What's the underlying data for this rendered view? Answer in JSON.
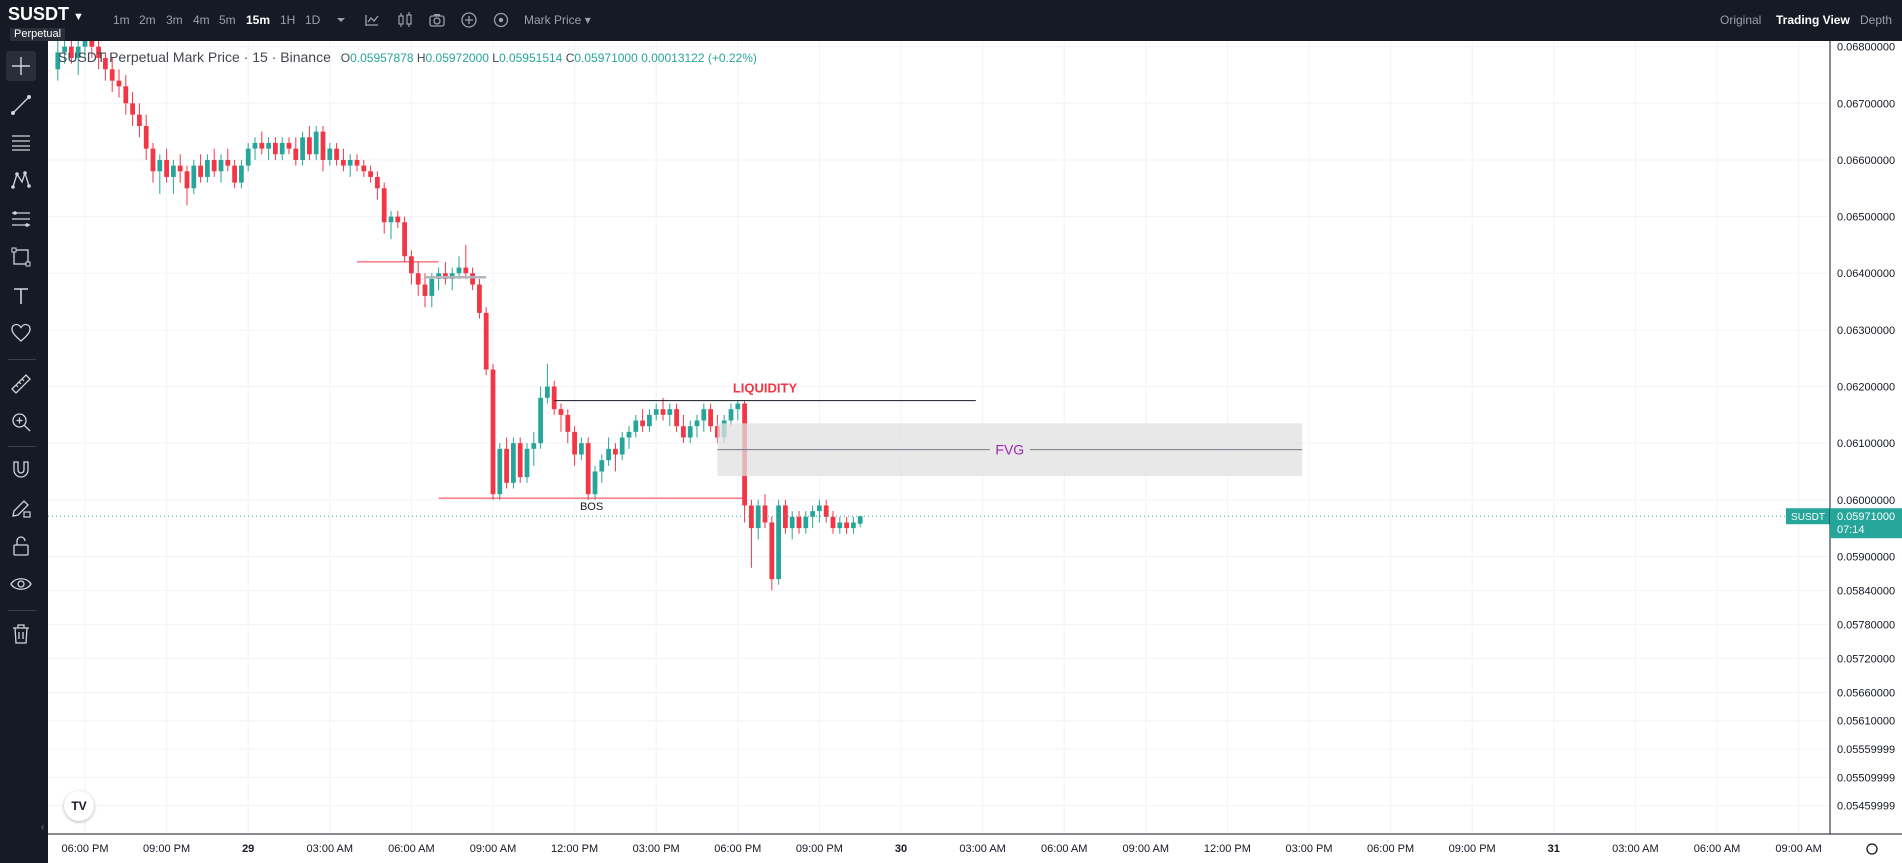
{
  "header": {
    "symbol": "SUSDT",
    "badge": "Perpetual",
    "timeframes": [
      {
        "label": "1m",
        "active": false
      },
      {
        "label": "2m",
        "active": false
      },
      {
        "label": "3m",
        "active": false
      },
      {
        "label": "4m",
        "active": false
      },
      {
        "label": "5m",
        "active": false
      },
      {
        "label": "15m",
        "active": true
      },
      {
        "label": "1H",
        "active": false
      },
      {
        "label": "1D",
        "active": false
      }
    ],
    "toolbar_icons": [
      "chevron-down-icon",
      "candle-type-icon",
      "indicators-icon",
      "screenshot-icon",
      "plus-circle-icon",
      "settings-icon"
    ],
    "price_type": "Mark Price",
    "views": [
      {
        "label": "Original",
        "active": false
      },
      {
        "label": "Trading View",
        "active": true
      },
      {
        "label": "Depth",
        "active": false
      }
    ]
  },
  "left_toolbar": [
    "crosshair-icon",
    "trend-line-icon",
    "horizontal-lines-icon",
    "pattern-icon",
    "fib-icon",
    "rectangle-icon",
    "text-icon",
    "heart-icon",
    "ruler-icon",
    "zoom-in-icon",
    "magnet-icon",
    "lock-pencil-icon",
    "unlock-icon",
    "eye-icon",
    "trash-icon"
  ],
  "legend": {
    "title": "SUSDT Perpetual Mark Price · 15 · Binance",
    "o_label": "O",
    "o": "0.05957878",
    "h_label": "H",
    "h": "0.05972000",
    "l_label": "L",
    "l": "0.05951514",
    "c_label": "C",
    "c": "0.05971000",
    "change": "0.00013122 (+0.22%)"
  },
  "chart_data": {
    "type": "candlestick",
    "yaxis": {
      "labels": [
        "0.06800000",
        "0.06700000",
        "0.06600000",
        "0.06500000",
        "0.06400000",
        "0.06300000",
        "0.06200000",
        "0.06100000",
        "0.06000000",
        "0.05900000",
        "0.05840000",
        "0.05780000",
        "0.05720000",
        "0.05660000",
        "0.05610000",
        "0.05559999",
        "0.05509999",
        "0.05459999"
      ],
      "ylim": [
        0.0541,
        0.0681
      ]
    },
    "xaxis": {
      "labels": [
        "06:00 PM",
        "09:00 PM",
        "29",
        "03:00 AM",
        "06:00 AM",
        "09:00 AM",
        "12:00 PM",
        "03:00 PM",
        "06:00 PM",
        "09:00 PM",
        "30",
        "03:00 AM",
        "06:00 AM",
        "09:00 AM",
        "12:00 PM",
        "03:00 PM",
        "06:00 PM",
        "09:00 PM",
        "31",
        "03:00 AM",
        "06:00 AM",
        "09:00 AM"
      ]
    },
    "last_price": {
      "symbol": "SUSDT",
      "price": "0.05971000",
      "countdown": "07:14",
      "value": 0.05971
    },
    "annotations": [
      {
        "type": "text",
        "label": "LIQUIDITY",
        "color": "#f23645"
      },
      {
        "type": "text",
        "label": "FVG",
        "color": "#9c27b0"
      },
      {
        "type": "text",
        "label": "BOS",
        "color": "#131722"
      }
    ],
    "candles": [
      [
        0.0676,
        0.0682,
        0.0674,
        0.0679
      ],
      [
        0.0679,
        0.0683,
        0.0677,
        0.068
      ],
      [
        0.068,
        0.0682,
        0.0677,
        0.0678
      ],
      [
        0.0678,
        0.0681,
        0.0675,
        0.068
      ],
      [
        0.068,
        0.0684,
        0.0678,
        0.0681
      ],
      [
        0.0681,
        0.0683,
        0.0678,
        0.068
      ],
      [
        0.068,
        0.0682,
        0.0676,
        0.0678
      ],
      [
        0.0678,
        0.0679,
        0.0674,
        0.0676
      ],
      [
        0.0676,
        0.0678,
        0.0672,
        0.0674
      ],
      [
        0.0674,
        0.0676,
        0.0671,
        0.0673
      ],
      [
        0.0673,
        0.0675,
        0.0668,
        0.067
      ],
      [
        0.067,
        0.0672,
        0.0666,
        0.0668
      ],
      [
        0.0668,
        0.067,
        0.0664,
        0.0666
      ],
      [
        0.0666,
        0.0668,
        0.066,
        0.0662
      ],
      [
        0.0662,
        0.0663,
        0.0656,
        0.0658
      ],
      [
        0.0658,
        0.0661,
        0.0654,
        0.066
      ],
      [
        0.066,
        0.0662,
        0.0656,
        0.0657
      ],
      [
        0.0657,
        0.066,
        0.0654,
        0.0659
      ],
      [
        0.0659,
        0.0661,
        0.0656,
        0.0658
      ],
      [
        0.0658,
        0.0659,
        0.0652,
        0.0655
      ],
      [
        0.0655,
        0.066,
        0.0654,
        0.0659
      ],
      [
        0.0659,
        0.0661,
        0.0656,
        0.0657
      ],
      [
        0.0657,
        0.0661,
        0.0656,
        0.066
      ],
      [
        0.066,
        0.0662,
        0.0657,
        0.0658
      ],
      [
        0.0658,
        0.0661,
        0.0656,
        0.066
      ],
      [
        0.066,
        0.0662,
        0.0658,
        0.0659
      ],
      [
        0.0659,
        0.066,
        0.0655,
        0.0656
      ],
      [
        0.0656,
        0.066,
        0.0655,
        0.0659
      ],
      [
        0.0659,
        0.0663,
        0.0658,
        0.0662
      ],
      [
        0.0662,
        0.0664,
        0.066,
        0.0663
      ],
      [
        0.0663,
        0.0665,
        0.0661,
        0.0662
      ],
      [
        0.0662,
        0.0664,
        0.066,
        0.0663
      ],
      [
        0.0663,
        0.0664,
        0.066,
        0.0661
      ],
      [
        0.0661,
        0.0664,
        0.066,
        0.0663
      ],
      [
        0.0663,
        0.0664,
        0.0661,
        0.0662
      ],
      [
        0.0662,
        0.0664,
        0.0659,
        0.066
      ],
      [
        0.066,
        0.0665,
        0.0659,
        0.0664
      ],
      [
        0.0664,
        0.0666,
        0.066,
        0.0661
      ],
      [
        0.0661,
        0.0666,
        0.066,
        0.0665
      ],
      [
        0.0665,
        0.0666,
        0.0658,
        0.066
      ],
      [
        0.066,
        0.0663,
        0.0659,
        0.0662
      ],
      [
        0.0662,
        0.0663,
        0.0659,
        0.066
      ],
      [
        0.066,
        0.0662,
        0.0658,
        0.0659
      ],
      [
        0.0659,
        0.0661,
        0.0657,
        0.066
      ],
      [
        0.066,
        0.0661,
        0.0658,
        0.0659
      ],
      [
        0.0659,
        0.066,
        0.0657,
        0.0658
      ],
      [
        0.0658,
        0.0659,
        0.0656,
        0.0657
      ],
      [
        0.0657,
        0.0658,
        0.0653,
        0.0655
      ],
      [
        0.0655,
        0.0656,
        0.0647,
        0.0649
      ],
      [
        0.0649,
        0.0651,
        0.0646,
        0.065
      ],
      [
        0.065,
        0.0651,
        0.0648,
        0.0649
      ],
      [
        0.0649,
        0.065,
        0.0642,
        0.0643
      ],
      [
        0.0643,
        0.0644,
        0.0638,
        0.064
      ],
      [
        0.064,
        0.0642,
        0.0636,
        0.0638
      ],
      [
        0.0638,
        0.064,
        0.0634,
        0.0636
      ],
      [
        0.0636,
        0.064,
        0.0634,
        0.0639
      ],
      [
        0.0639,
        0.0641,
        0.0637,
        0.064
      ],
      [
        0.064,
        0.0642,
        0.0638,
        0.0639
      ],
      [
        0.0639,
        0.0641,
        0.0637,
        0.064
      ],
      [
        0.064,
        0.0643,
        0.0639,
        0.0641
      ],
      [
        0.0641,
        0.0645,
        0.0639,
        0.064
      ],
      [
        0.064,
        0.0641,
        0.0637,
        0.0638
      ],
      [
        0.0638,
        0.0639,
        0.0632,
        0.0633
      ],
      [
        0.0633,
        0.0634,
        0.0622,
        0.0623
      ],
      [
        0.0623,
        0.0624,
        0.06,
        0.0601
      ],
      [
        0.0601,
        0.061,
        0.06,
        0.0609
      ],
      [
        0.0609,
        0.0611,
        0.0602,
        0.0603
      ],
      [
        0.0603,
        0.0611,
        0.0602,
        0.061
      ],
      [
        0.061,
        0.0611,
        0.0603,
        0.0604
      ],
      [
        0.0604,
        0.061,
        0.0603,
        0.0609
      ],
      [
        0.0609,
        0.0612,
        0.0606,
        0.061
      ],
      [
        0.061,
        0.062,
        0.0609,
        0.0618
      ],
      [
        0.0618,
        0.0624,
        0.0617,
        0.062
      ],
      [
        0.062,
        0.0621,
        0.0615,
        0.0616
      ],
      [
        0.0616,
        0.0617,
        0.0612,
        0.0615
      ],
      [
        0.0615,
        0.0616,
        0.061,
        0.0612
      ],
      [
        0.0612,
        0.0613,
        0.0606,
        0.0608
      ],
      [
        0.0608,
        0.0611,
        0.0607,
        0.061
      ],
      [
        0.061,
        0.0611,
        0.06,
        0.0601
      ],
      [
        0.0601,
        0.0606,
        0.06,
        0.0605
      ],
      [
        0.0605,
        0.0608,
        0.0603,
        0.0607
      ],
      [
        0.0607,
        0.0611,
        0.0606,
        0.0609
      ],
      [
        0.0609,
        0.061,
        0.0605,
        0.0608
      ],
      [
        0.0608,
        0.0612,
        0.0607,
        0.0611
      ],
      [
        0.0611,
        0.0613,
        0.0609,
        0.0612
      ],
      [
        0.0612,
        0.0615,
        0.0611,
        0.0614
      ],
      [
        0.0614,
        0.0616,
        0.0612,
        0.0613
      ],
      [
        0.0613,
        0.0616,
        0.0612,
        0.0615
      ],
      [
        0.0615,
        0.0617,
        0.0614,
        0.0616
      ],
      [
        0.0616,
        0.0618,
        0.0614,
        0.0615
      ],
      [
        0.0615,
        0.0617,
        0.0613,
        0.0616
      ],
      [
        0.0616,
        0.0617,
        0.0612,
        0.0613
      ],
      [
        0.0613,
        0.0615,
        0.061,
        0.0611
      ],
      [
        0.0611,
        0.0614,
        0.061,
        0.0613
      ],
      [
        0.0613,
        0.0615,
        0.0611,
        0.0614
      ],
      [
        0.0614,
        0.0617,
        0.0612,
        0.0616
      ],
      [
        0.0616,
        0.0617,
        0.0612,
        0.0613
      ],
      [
        0.0613,
        0.0615,
        0.061,
        0.0611
      ],
      [
        0.0611,
        0.0615,
        0.061,
        0.0614
      ],
      [
        0.0614,
        0.0617,
        0.0613,
        0.0616
      ],
      [
        0.0616,
        0.06175,
        0.0614,
        0.0617
      ],
      [
        0.0617,
        0.06175,
        0.0596,
        0.0599
      ],
      [
        0.0599,
        0.06,
        0.0588,
        0.0595
      ],
      [
        0.0595,
        0.06,
        0.0593,
        0.0599
      ],
      [
        0.0599,
        0.0601,
        0.0595,
        0.0596
      ],
      [
        0.0596,
        0.0597,
        0.0584,
        0.0586
      ],
      [
        0.0586,
        0.06,
        0.0585,
        0.0599
      ],
      [
        0.0599,
        0.06,
        0.0594,
        0.0595
      ],
      [
        0.0595,
        0.0598,
        0.0593,
        0.0597
      ],
      [
        0.0597,
        0.0598,
        0.0594,
        0.0595
      ],
      [
        0.0595,
        0.0598,
        0.0594,
        0.0597
      ],
      [
        0.0597,
        0.0599,
        0.0595,
        0.0598
      ],
      [
        0.0598,
        0.06,
        0.0596,
        0.0599
      ],
      [
        0.0599,
        0.06,
        0.0596,
        0.0597
      ],
      [
        0.0597,
        0.0598,
        0.0594,
        0.0595
      ],
      [
        0.0595,
        0.0597,
        0.0594,
        0.0596
      ],
      [
        0.0596,
        0.0597,
        0.0594,
        0.0595
      ],
      [
        0.0595,
        0.0597,
        0.0594,
        0.0596
      ],
      [
        0.05957878,
        0.05972,
        0.05951514,
        0.05971
      ]
    ]
  }
}
